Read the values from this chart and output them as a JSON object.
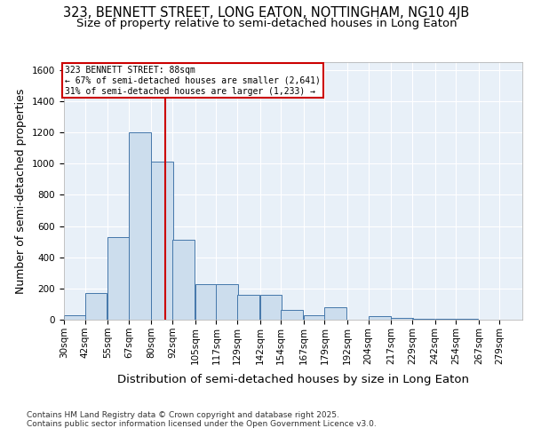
{
  "title_line1": "323, BENNETT STREET, LONG EATON, NOTTINGHAM, NG10 4JB",
  "title_line2": "Size of property relative to semi-detached houses in Long Eaton",
  "xlabel": "Distribution of semi-detached houses by size in Long Eaton",
  "ylabel": "Number of semi-detached properties",
  "bin_labels": [
    "30sqm",
    "42sqm",
    "55sqm",
    "67sqm",
    "80sqm",
    "92sqm",
    "105sqm",
    "117sqm",
    "129sqm",
    "142sqm",
    "154sqm",
    "167sqm",
    "179sqm",
    "192sqm",
    "204sqm",
    "217sqm",
    "229sqm",
    "242sqm",
    "254sqm",
    "267sqm",
    "279sqm"
  ],
  "bar_values": [
    30,
    170,
    530,
    1200,
    1010,
    510,
    230,
    230,
    160,
    160,
    60,
    30,
    80,
    0,
    20,
    10,
    5,
    5,
    5,
    0,
    0
  ],
  "bar_color": "#ccdded",
  "bar_edge_color": "#4477aa",
  "property_line_x": 88,
  "bin_starts": [
    30,
    42,
    55,
    67,
    80,
    92,
    105,
    117,
    129,
    142,
    154,
    167,
    179,
    192,
    204,
    217,
    229,
    242,
    254,
    267,
    279
  ],
  "bin_width": 13,
  "annotation_title": "323 BENNETT STREET: 88sqm",
  "annotation_line1": "← 67% of semi-detached houses are smaller (2,641)",
  "annotation_line2": "31% of semi-detached houses are larger (1,233) →",
  "vline_color": "#cc0000",
  "annotation_box_edge_color": "#cc0000",
  "ylim": [
    0,
    1650
  ],
  "yticks": [
    0,
    200,
    400,
    600,
    800,
    1000,
    1200,
    1400,
    1600
  ],
  "footer_line1": "Contains HM Land Registry data © Crown copyright and database right 2025.",
  "footer_line2": "Contains public sector information licensed under the Open Government Licence v3.0.",
  "background_color": "#ffffff",
  "plot_background_color": "#e8f0f8",
  "grid_color": "#ffffff",
  "title_fontsize": 10.5,
  "subtitle_fontsize": 9.5,
  "axis_label_fontsize": 9,
  "tick_fontsize": 7.5,
  "footer_fontsize": 6.5
}
